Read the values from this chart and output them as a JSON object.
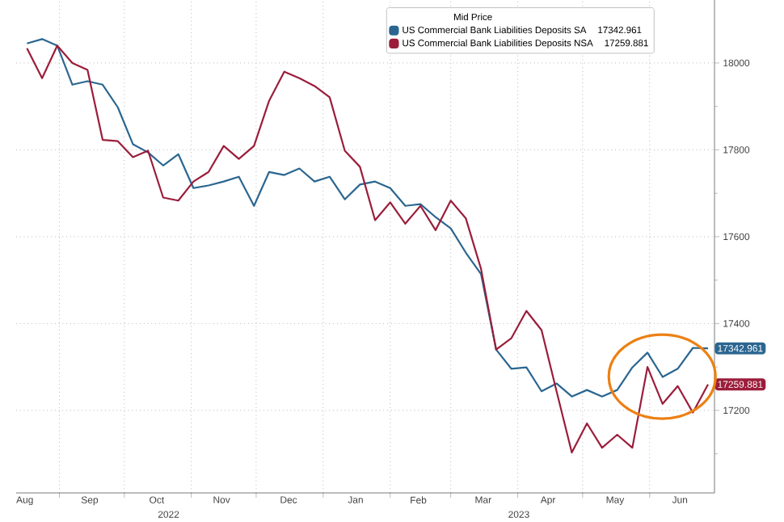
{
  "chart_data": {
    "type": "line",
    "legend_title": "Mid Price",
    "legend": "top right",
    "grid": true,
    "line_style": "solid",
    "x": [
      "2022-08-17",
      "2022-08-24",
      "2022-08-31",
      "2022-09-07",
      "2022-09-14",
      "2022-09-21",
      "2022-09-28",
      "2022-10-05",
      "2022-10-12",
      "2022-10-19",
      "2022-10-26",
      "2022-11-02",
      "2022-11-09",
      "2022-11-16",
      "2022-11-23",
      "2022-11-30",
      "2022-12-07",
      "2022-12-14",
      "2022-12-21",
      "2022-12-28",
      "2023-01-04",
      "2023-01-11",
      "2023-01-18",
      "2023-01-25",
      "2023-02-01",
      "2023-02-08",
      "2023-02-15",
      "2023-02-22",
      "2023-03-01",
      "2023-03-08",
      "2023-03-15",
      "2023-03-22",
      "2023-03-29",
      "2023-04-05",
      "2023-04-12",
      "2023-04-19",
      "2023-04-26",
      "2023-05-03",
      "2023-05-10",
      "2023-05-17",
      "2023-05-24",
      "2023-05-31",
      "2023-06-07",
      "2023-06-14",
      "2023-06-21",
      "2023-06-28"
    ],
    "series": [
      {
        "name": "US Commercial Bank Liabilities Deposits SA",
        "color": "#2b6690",
        "value_labels": [
          null,
          null,
          null,
          null,
          null,
          null,
          null,
          null,
          null,
          null,
          null,
          null,
          null,
          null,
          null,
          null,
          null,
          null,
          null,
          null,
          null,
          null,
          null,
          null,
          null,
          null,
          null,
          null,
          null,
          null,
          null,
          null,
          null,
          null,
          null,
          null,
          null,
          null,
          null,
          null,
          null,
          null,
          null,
          null,
          null,
          "17342.961"
        ],
        "values": [
          18045,
          18055,
          18040,
          17950,
          17958,
          17950,
          17898,
          17813,
          17794,
          17764,
          17790,
          17712,
          17718,
          17727,
          17738,
          17671,
          17749,
          17742,
          17757,
          17727,
          17738,
          17686,
          17720,
          17727,
          17712,
          17671,
          17675,
          17645,
          17619,
          17563,
          17514,
          17340,
          17296,
          17299,
          17244,
          17262,
          17232,
          17247,
          17232,
          17247,
          17299,
          17333,
          17277,
          17296,
          17344,
          17342.961
        ]
      },
      {
        "name": "US Commercial Bank Liabilities Deposits NSA",
        "color": "#9b1d3a",
        "value_labels": [
          null,
          null,
          null,
          null,
          null,
          null,
          null,
          null,
          null,
          null,
          null,
          null,
          null,
          null,
          null,
          null,
          null,
          null,
          null,
          null,
          null,
          null,
          null,
          null,
          null,
          null,
          null,
          null,
          null,
          null,
          null,
          null,
          null,
          null,
          null,
          null,
          null,
          null,
          null,
          null,
          null,
          null,
          null,
          null,
          null,
          "17259.881"
        ],
        "values": [
          18034,
          17965,
          18040,
          18000,
          17984,
          17823,
          17820,
          17783,
          17798,
          17690,
          17683,
          17727,
          17749,
          17809,
          17779,
          17809,
          17913,
          17980,
          17965,
          17947,
          17921,
          17798,
          17761,
          17638,
          17679,
          17630,
          17671,
          17615,
          17683,
          17642,
          17526,
          17340,
          17366,
          17429,
          17385,
          17243,
          17103,
          17170,
          17114,
          17144,
          17114,
          17300,
          17215,
          17256,
          17195,
          17259.881
        ]
      }
    ],
    "xlim": [
      "2022-08-12",
      "2023-07-01"
    ],
    "xticks": [
      {
        "value": "2022-09-01",
        "label": null
      },
      {
        "value": "2022-10-01",
        "label": null
      },
      {
        "value": "2022-11-01",
        "label": null
      },
      {
        "value": "2022-12-01",
        "label": null
      },
      {
        "value": "2023-01-01",
        "label": null
      },
      {
        "value": "2023-02-01",
        "label": null
      },
      {
        "value": "2023-03-01",
        "label": null
      },
      {
        "value": "2023-04-01",
        "label": null
      },
      {
        "value": "2023-05-01",
        "label": null
      },
      {
        "value": "2023-06-01",
        "label": null
      },
      {
        "value": "2022-08-16",
        "label": "Aug"
      },
      {
        "value": "2022-09-15",
        "label": "Sep"
      },
      {
        "value": "2022-10-16",
        "label": "Oct"
      },
      {
        "value": "2022-11-15",
        "label": "Nov"
      },
      {
        "value": "2022-12-16",
        "label": "Dec"
      },
      {
        "value": "2023-01-16",
        "label": "Jan"
      },
      {
        "value": "2023-02-14",
        "label": "Feb"
      },
      {
        "value": "2023-03-16",
        "label": "Mar"
      },
      {
        "value": "2023-04-15",
        "label": "Apr"
      },
      {
        "value": "2023-05-16",
        "label": "May"
      },
      {
        "value": "2023-06-15",
        "label": "Jun"
      }
    ],
    "ylim": [
      17010,
      18145
    ],
    "yticks": [
      17200,
      17400,
      17600,
      17800,
      18000,
      {
        "value": 17100,
        "label": null
      },
      {
        "value": 17300,
        "label": null
      },
      {
        "value": 17500,
        "label": null
      },
      {
        "value": 17700,
        "label": null
      },
      {
        "value": 17900,
        "label": null
      }
    ],
    "annotations": [
      "2022",
      "2023"
    ]
  }
}
